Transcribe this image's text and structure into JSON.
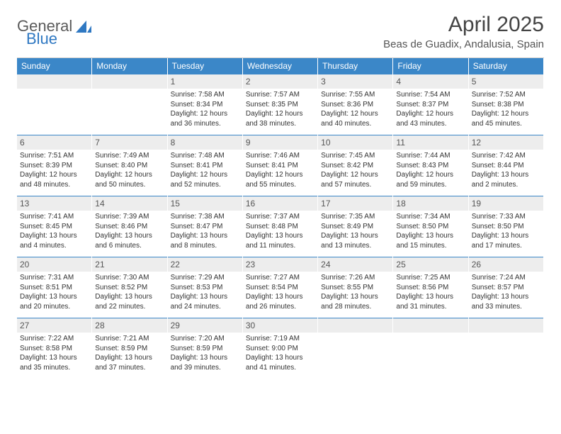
{
  "brand": {
    "general": "General",
    "blue": "Blue"
  },
  "title": "April 2025",
  "location": "Beas de Guadix, Andalusia, Spain",
  "colors": {
    "header_bg": "#3b87c8",
    "header_text": "#ffffff",
    "daynum_bg": "#ededed",
    "cell_border_top": "#3b87c8",
    "body_text": "#333333",
    "brand_gray": "#5a5a5a",
    "brand_blue": "#2f78c2"
  },
  "weekdays": [
    "Sunday",
    "Monday",
    "Tuesday",
    "Wednesday",
    "Thursday",
    "Friday",
    "Saturday"
  ],
  "weeks": [
    [
      {
        "n": "",
        "empty": true
      },
      {
        "n": "",
        "empty": true
      },
      {
        "n": "1",
        "sunrise": "Sunrise: 7:58 AM",
        "sunset": "Sunset: 8:34 PM",
        "dl1": "Daylight: 12 hours",
        "dl2": "and 36 minutes."
      },
      {
        "n": "2",
        "sunrise": "Sunrise: 7:57 AM",
        "sunset": "Sunset: 8:35 PM",
        "dl1": "Daylight: 12 hours",
        "dl2": "and 38 minutes."
      },
      {
        "n": "3",
        "sunrise": "Sunrise: 7:55 AM",
        "sunset": "Sunset: 8:36 PM",
        "dl1": "Daylight: 12 hours",
        "dl2": "and 40 minutes."
      },
      {
        "n": "4",
        "sunrise": "Sunrise: 7:54 AM",
        "sunset": "Sunset: 8:37 PM",
        "dl1": "Daylight: 12 hours",
        "dl2": "and 43 minutes."
      },
      {
        "n": "5",
        "sunrise": "Sunrise: 7:52 AM",
        "sunset": "Sunset: 8:38 PM",
        "dl1": "Daylight: 12 hours",
        "dl2": "and 45 minutes."
      }
    ],
    [
      {
        "n": "6",
        "sunrise": "Sunrise: 7:51 AM",
        "sunset": "Sunset: 8:39 PM",
        "dl1": "Daylight: 12 hours",
        "dl2": "and 48 minutes."
      },
      {
        "n": "7",
        "sunrise": "Sunrise: 7:49 AM",
        "sunset": "Sunset: 8:40 PM",
        "dl1": "Daylight: 12 hours",
        "dl2": "and 50 minutes."
      },
      {
        "n": "8",
        "sunrise": "Sunrise: 7:48 AM",
        "sunset": "Sunset: 8:41 PM",
        "dl1": "Daylight: 12 hours",
        "dl2": "and 52 minutes."
      },
      {
        "n": "9",
        "sunrise": "Sunrise: 7:46 AM",
        "sunset": "Sunset: 8:41 PM",
        "dl1": "Daylight: 12 hours",
        "dl2": "and 55 minutes."
      },
      {
        "n": "10",
        "sunrise": "Sunrise: 7:45 AM",
        "sunset": "Sunset: 8:42 PM",
        "dl1": "Daylight: 12 hours",
        "dl2": "and 57 minutes."
      },
      {
        "n": "11",
        "sunrise": "Sunrise: 7:44 AM",
        "sunset": "Sunset: 8:43 PM",
        "dl1": "Daylight: 12 hours",
        "dl2": "and 59 minutes."
      },
      {
        "n": "12",
        "sunrise": "Sunrise: 7:42 AM",
        "sunset": "Sunset: 8:44 PM",
        "dl1": "Daylight: 13 hours",
        "dl2": "and 2 minutes."
      }
    ],
    [
      {
        "n": "13",
        "sunrise": "Sunrise: 7:41 AM",
        "sunset": "Sunset: 8:45 PM",
        "dl1": "Daylight: 13 hours",
        "dl2": "and 4 minutes."
      },
      {
        "n": "14",
        "sunrise": "Sunrise: 7:39 AM",
        "sunset": "Sunset: 8:46 PM",
        "dl1": "Daylight: 13 hours",
        "dl2": "and 6 minutes."
      },
      {
        "n": "15",
        "sunrise": "Sunrise: 7:38 AM",
        "sunset": "Sunset: 8:47 PM",
        "dl1": "Daylight: 13 hours",
        "dl2": "and 8 minutes."
      },
      {
        "n": "16",
        "sunrise": "Sunrise: 7:37 AM",
        "sunset": "Sunset: 8:48 PM",
        "dl1": "Daylight: 13 hours",
        "dl2": "and 11 minutes."
      },
      {
        "n": "17",
        "sunrise": "Sunrise: 7:35 AM",
        "sunset": "Sunset: 8:49 PM",
        "dl1": "Daylight: 13 hours",
        "dl2": "and 13 minutes."
      },
      {
        "n": "18",
        "sunrise": "Sunrise: 7:34 AM",
        "sunset": "Sunset: 8:50 PM",
        "dl1": "Daylight: 13 hours",
        "dl2": "and 15 minutes."
      },
      {
        "n": "19",
        "sunrise": "Sunrise: 7:33 AM",
        "sunset": "Sunset: 8:50 PM",
        "dl1": "Daylight: 13 hours",
        "dl2": "and 17 minutes."
      }
    ],
    [
      {
        "n": "20",
        "sunrise": "Sunrise: 7:31 AM",
        "sunset": "Sunset: 8:51 PM",
        "dl1": "Daylight: 13 hours",
        "dl2": "and 20 minutes."
      },
      {
        "n": "21",
        "sunrise": "Sunrise: 7:30 AM",
        "sunset": "Sunset: 8:52 PM",
        "dl1": "Daylight: 13 hours",
        "dl2": "and 22 minutes."
      },
      {
        "n": "22",
        "sunrise": "Sunrise: 7:29 AM",
        "sunset": "Sunset: 8:53 PM",
        "dl1": "Daylight: 13 hours",
        "dl2": "and 24 minutes."
      },
      {
        "n": "23",
        "sunrise": "Sunrise: 7:27 AM",
        "sunset": "Sunset: 8:54 PM",
        "dl1": "Daylight: 13 hours",
        "dl2": "and 26 minutes."
      },
      {
        "n": "24",
        "sunrise": "Sunrise: 7:26 AM",
        "sunset": "Sunset: 8:55 PM",
        "dl1": "Daylight: 13 hours",
        "dl2": "and 28 minutes."
      },
      {
        "n": "25",
        "sunrise": "Sunrise: 7:25 AM",
        "sunset": "Sunset: 8:56 PM",
        "dl1": "Daylight: 13 hours",
        "dl2": "and 31 minutes."
      },
      {
        "n": "26",
        "sunrise": "Sunrise: 7:24 AM",
        "sunset": "Sunset: 8:57 PM",
        "dl1": "Daylight: 13 hours",
        "dl2": "and 33 minutes."
      }
    ],
    [
      {
        "n": "27",
        "sunrise": "Sunrise: 7:22 AM",
        "sunset": "Sunset: 8:58 PM",
        "dl1": "Daylight: 13 hours",
        "dl2": "and 35 minutes."
      },
      {
        "n": "28",
        "sunrise": "Sunrise: 7:21 AM",
        "sunset": "Sunset: 8:59 PM",
        "dl1": "Daylight: 13 hours",
        "dl2": "and 37 minutes."
      },
      {
        "n": "29",
        "sunrise": "Sunrise: 7:20 AM",
        "sunset": "Sunset: 8:59 PM",
        "dl1": "Daylight: 13 hours",
        "dl2": "and 39 minutes."
      },
      {
        "n": "30",
        "sunrise": "Sunrise: 7:19 AM",
        "sunset": "Sunset: 9:00 PM",
        "dl1": "Daylight: 13 hours",
        "dl2": "and 41 minutes."
      },
      {
        "n": "",
        "empty": true
      },
      {
        "n": "",
        "empty": true
      },
      {
        "n": "",
        "empty": true
      }
    ]
  ]
}
